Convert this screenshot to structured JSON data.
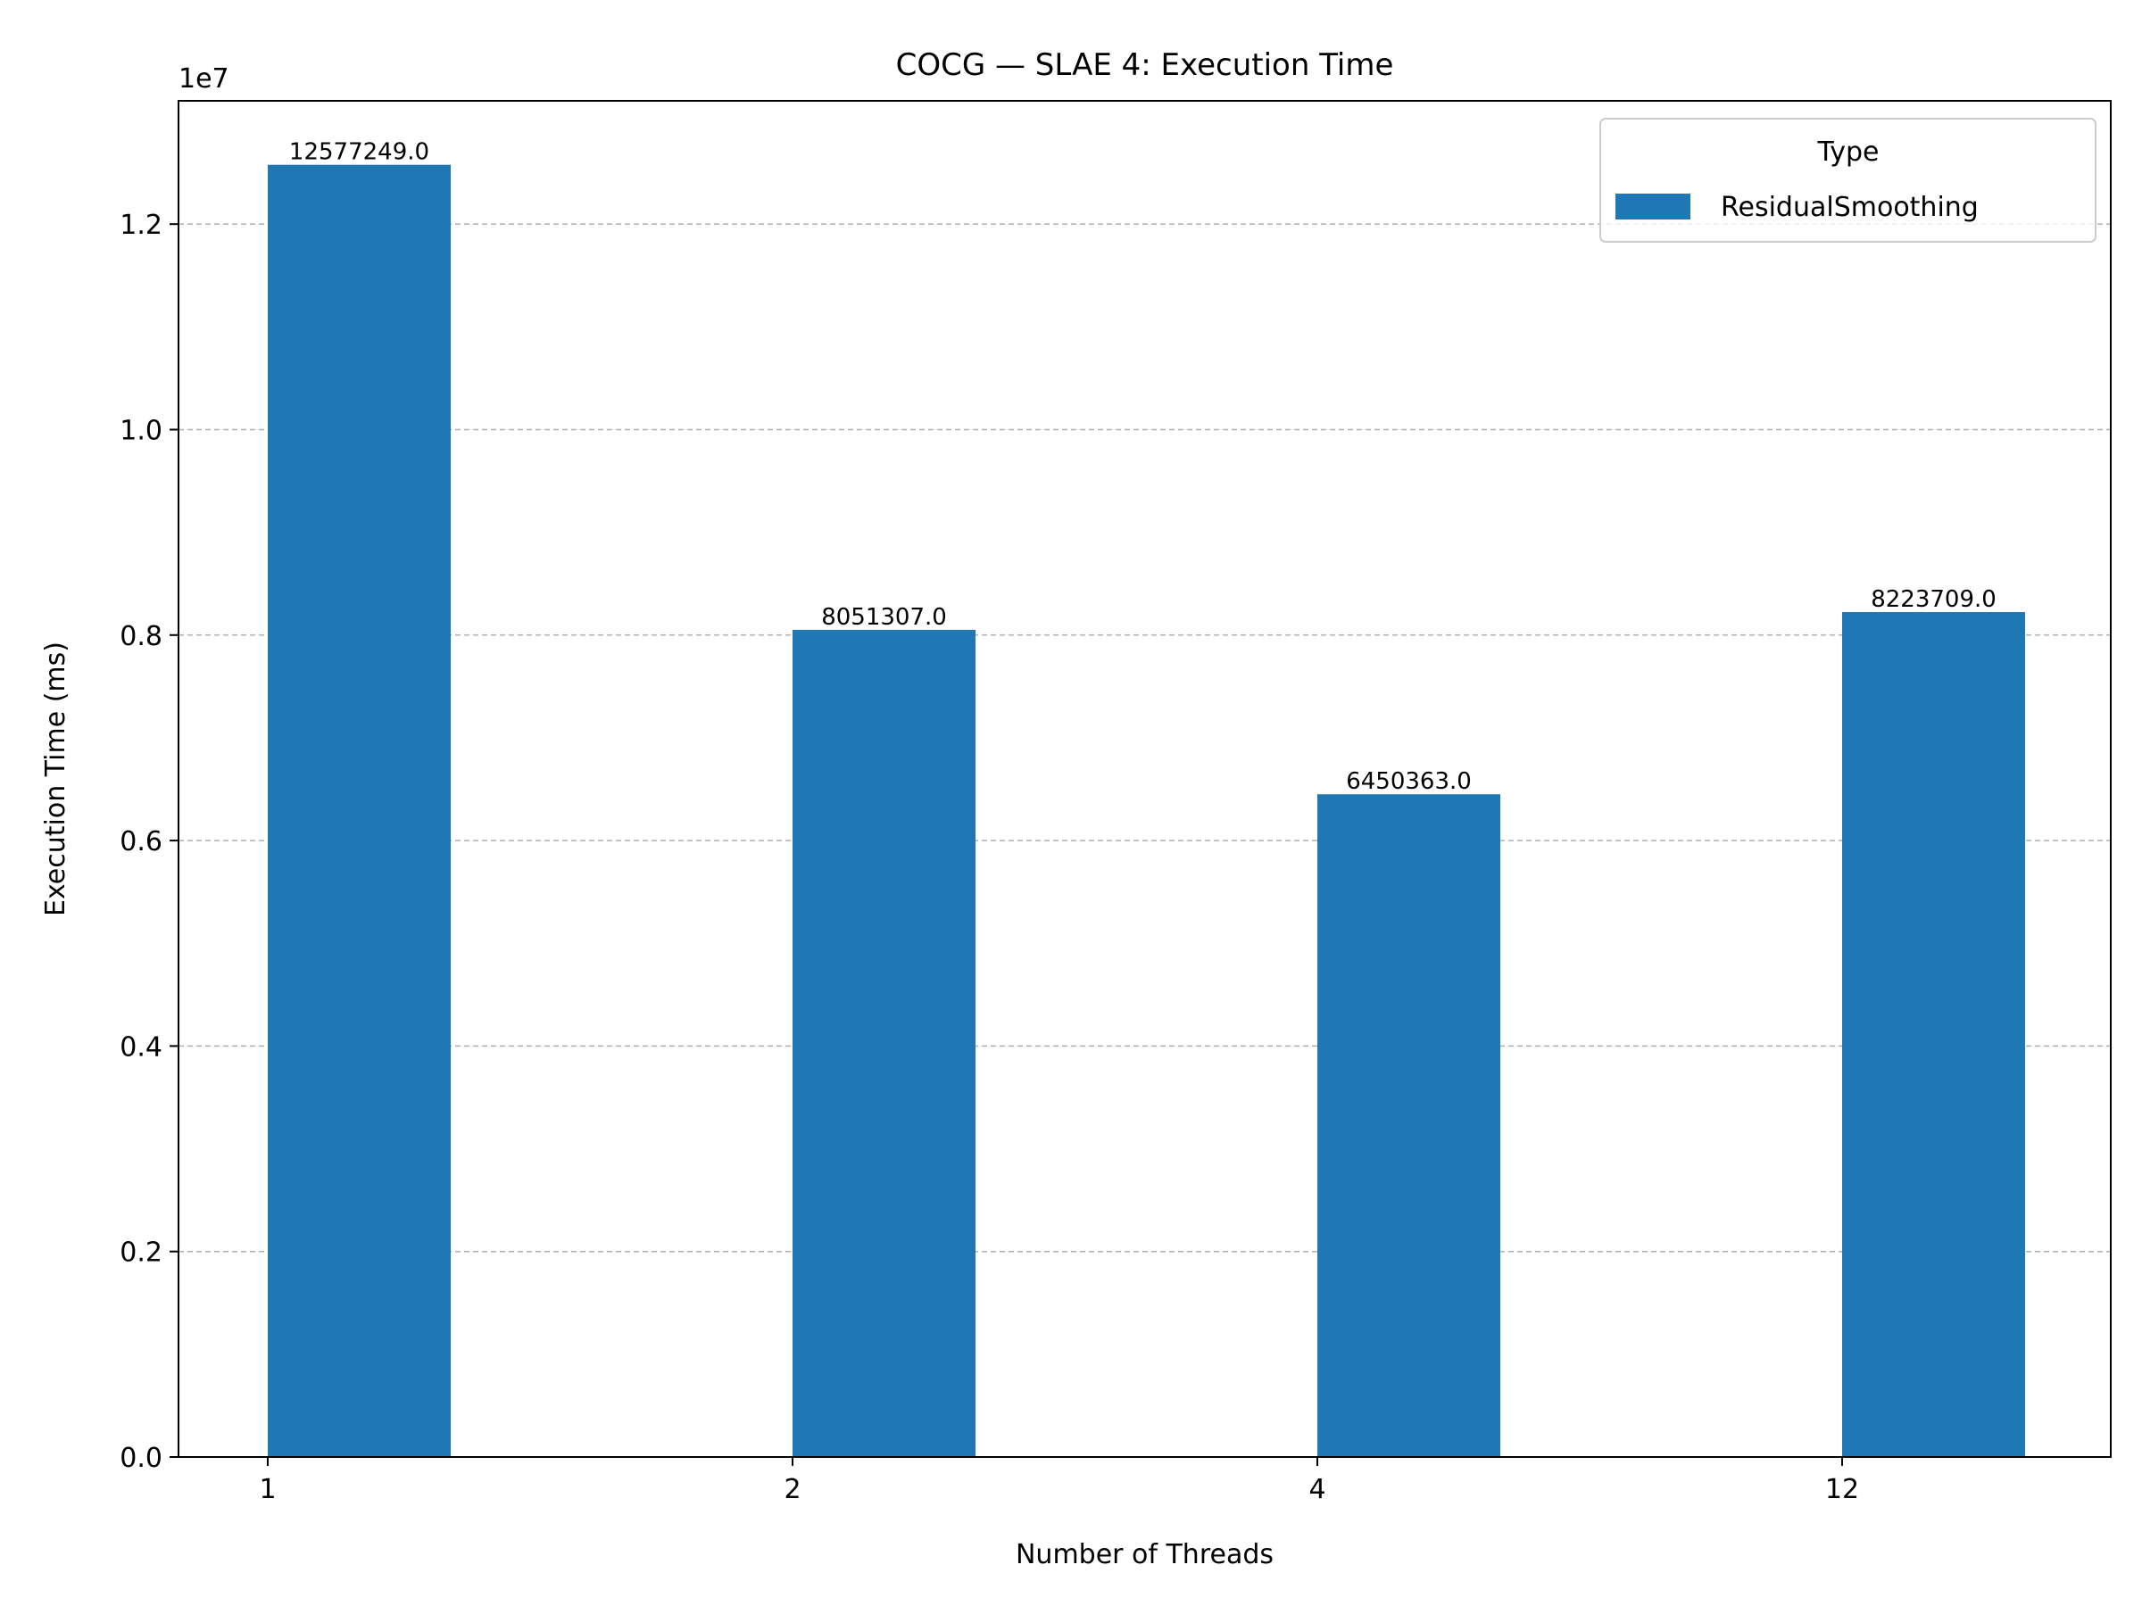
{
  "chart_data": {
    "type": "bar",
    "title": "COCG — SLAE 4: Execution Time",
    "xlabel": "Number of Threads",
    "ylabel": "Execution Time (ms)",
    "categories": [
      "1",
      "2",
      "4",
      "12"
    ],
    "series": [
      {
        "name": "ResidualSmoothing",
        "values": [
          12577249.0,
          8051307.0,
          6450363.0,
          8223709.0
        ],
        "color": "#1f77b4"
      }
    ],
    "data_labels": [
      "12577249.0",
      "8051307.0",
      "6450363.0",
      "8223709.0"
    ],
    "ylim": [
      0,
      13200000
    ],
    "y_ticks": [
      0,
      2000000,
      4000000,
      6000000,
      8000000,
      10000000,
      12000000
    ],
    "y_tick_labels": [
      "0.0",
      "0.2",
      "0.4",
      "0.6",
      "0.8",
      "1.0",
      "1.2"
    ],
    "y_offset_label": "1e7",
    "grid": "y-dashed",
    "legend": {
      "title": "Type",
      "placement": "top-right"
    }
  }
}
